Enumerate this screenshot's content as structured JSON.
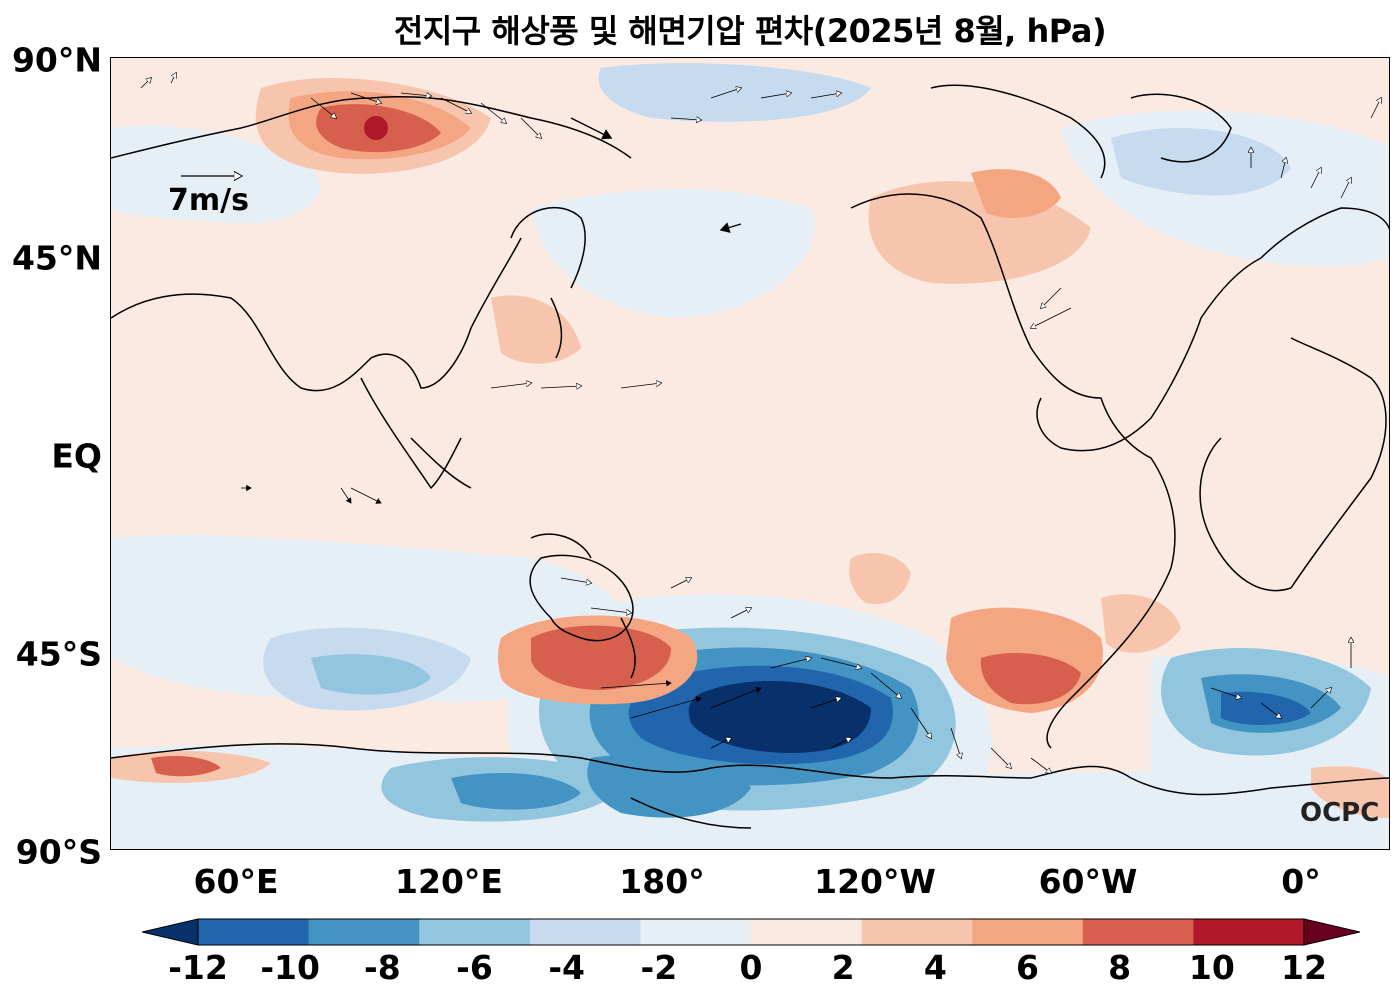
{
  "title": "전지구 해상풍 및 해면기압 편차(2025년 8월, hPa)",
  "map": {
    "lat_labels": [
      "90°N",
      "45°N",
      "EQ",
      "45°S",
      "90°S"
    ],
    "lon_labels": [
      "60°E",
      "120°E",
      "180°",
      "120°W",
      "60°W",
      "0°"
    ],
    "reference_vector_label": "7m/s",
    "watermark": "OCPC"
  },
  "colorbar": {
    "ticks": [
      "-12",
      "-10",
      "-8",
      "-6",
      "-4",
      "-2",
      "0",
      "2",
      "4",
      "6",
      "8",
      "10",
      "12"
    ],
    "colors": [
      "#08306b",
      "#2166ac",
      "#4393c3",
      "#92c5de",
      "#c6dbef",
      "#e7eff6",
      "#fbeae2",
      "#f7c5ad",
      "#f4a582",
      "#d6604d",
      "#b2182b",
      "#67001f"
    ]
  }
}
